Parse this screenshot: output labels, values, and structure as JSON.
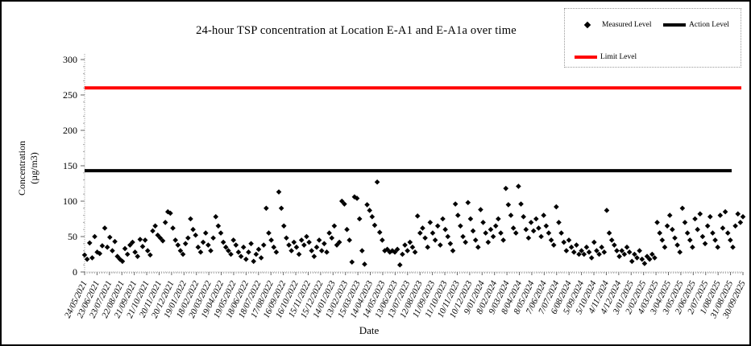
{
  "chart_data": {
    "type": "scatter",
    "title": "24-hour TSP concentration at Location E-A1 and E-A1a over time",
    "xlabel": "Date",
    "ylabel_line1": "Concentration",
    "ylabel_line2": "(µg/m3)",
    "ylim": [
      0,
      300
    ],
    "yticks": [
      0,
      50,
      100,
      150,
      200,
      250,
      300
    ],
    "y_minor_step": 10,
    "grid": false,
    "legend_position": "top-right",
    "legend": [
      {
        "label": "Measured Level",
        "marker": "diamond",
        "color": "#000000"
      },
      {
        "label": "Action Level",
        "marker": "line",
        "color": "#000000"
      },
      {
        "label": "Limit Level",
        "marker": "line",
        "color": "#ff0000"
      }
    ],
    "action_level": 143,
    "limit_level": 260,
    "point_color": "#000000",
    "x_tick_labels": [
      "24/05/2021",
      "23/06/2021",
      "23/07/2021",
      "22/08/2021",
      "21/09/2021",
      "21/10/2021",
      "20/11/2021",
      "20/12/2021",
      "19/01/2022",
      "18/02/2022",
      "20/03/2022",
      "19/04/2022",
      "19/05/2022",
      "18/06/2022",
      "18/07/2022",
      "17/08/2022",
      "16/09/2022",
      "16/10/2022",
      "15/11/2022",
      "15/12/2022",
      "14/01/2023",
      "13/02/2023",
      "15/03/2023",
      "14/04/2023",
      "14/05/2023",
      "13/06/2023",
      "13/07/2023",
      "12/08/2023",
      "11/09/2023",
      "11/10/2023",
      "10/11/2023",
      "10/12/2023",
      "9/01/2024",
      "8/02/2024",
      "9/03/2024",
      "8/04/2024",
      "8/05/2024",
      "7/06/2024",
      "7/07/2024",
      "6/08/2024",
      "5/09/2024",
      "5/10/2024",
      "4/11/2024",
      "4/12/2024",
      "3/01/2025",
      "2/02/2025",
      "4/03/2025",
      "3/04/2025",
      "3/05/2025",
      "2/06/2025",
      "2/07/2025",
      "1/08/2025",
      "31/08/2025",
      "30/09/2025"
    ],
    "measured_values": [
      24,
      18,
      41,
      20,
      50,
      28,
      26,
      37,
      62,
      35,
      49,
      30,
      43,
      22,
      18,
      15,
      33,
      25,
      38,
      42,
      28,
      22,
      46,
      36,
      45,
      30,
      24,
      58,
      65,
      52,
      48,
      44,
      70,
      85,
      83,
      62,
      45,
      38,
      30,
      25,
      40,
      48,
      75,
      60,
      52,
      35,
      28,
      42,
      55,
      38,
      30,
      48,
      78,
      65,
      55,
      42,
      35,
      30,
      25,
      45,
      38,
      28,
      22,
      35,
      18,
      28,
      40,
      15,
      25,
      32,
      20,
      38,
      90,
      55,
      45,
      35,
      28,
      113,
      90,
      65,
      48,
      38,
      30,
      42,
      35,
      25,
      45,
      38,
      50,
      42,
      30,
      22,
      35,
      45,
      30,
      40,
      28,
      55,
      48,
      65,
      38,
      42,
      100,
      96,
      60,
      45,
      14,
      106,
      104,
      75,
      30,
      11,
      95,
      87,
      78,
      66,
      127,
      56,
      45,
      30,
      32,
      28,
      30,
      28,
      32,
      10,
      25,
      38,
      30,
      42,
      35,
      28,
      79,
      55,
      62,
      48,
      35,
      70,
      55,
      45,
      65,
      38,
      75,
      60,
      50,
      40,
      30,
      96,
      80,
      65,
      50,
      42,
      98,
      75,
      58,
      45,
      35,
      88,
      70,
      55,
      42,
      60,
      50,
      65,
      75,
      55,
      45,
      118,
      95,
      80,
      62,
      55,
      121,
      96,
      78,
      60,
      48,
      70,
      58,
      75,
      62,
      50,
      80,
      65,
      55,
      45,
      38,
      92,
      70,
      55,
      42,
      30,
      45,
      35,
      28,
      38,
      25,
      30,
      25,
      35,
      28,
      20,
      42,
      30,
      25,
      35,
      28,
      87,
      55,
      45,
      38,
      30,
      22,
      30,
      25,
      35,
      28,
      15,
      25,
      20,
      30,
      18,
      12,
      22,
      18,
      25,
      20,
      70,
      55,
      45,
      35,
      65,
      80,
      60,
      48,
      38,
      28,
      90,
      70,
      55,
      45,
      35,
      75,
      60,
      82,
      50,
      40,
      65,
      78,
      55,
      45,
      35,
      80,
      62,
      85,
      55,
      45,
      35,
      65,
      82,
      70,
      78
    ]
  }
}
